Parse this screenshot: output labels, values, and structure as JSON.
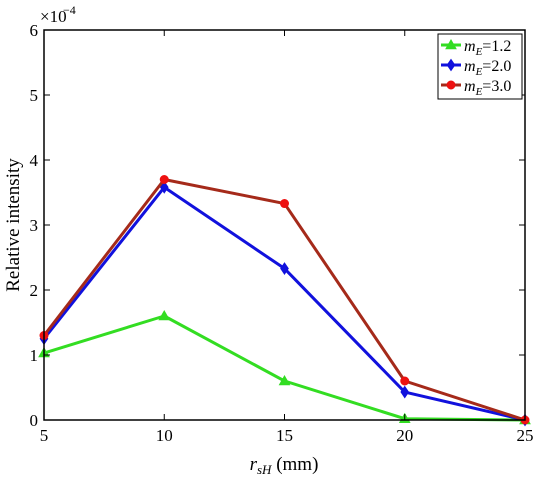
{
  "chart_data": {
    "type": "line",
    "x": [
      5,
      10,
      15,
      20,
      25
    ],
    "xlim": [
      5,
      25
    ],
    "ylim": [
      0,
      6
    ],
    "y_scale_exponent": "×10⁻⁴",
    "y_exponent_base": "×10",
    "y_exponent_power": "−4",
    "x_ticks": [
      5,
      10,
      15,
      20,
      25
    ],
    "y_ticks": [
      0,
      1,
      2,
      3,
      4,
      5,
      6
    ],
    "xlabel": {
      "main": "r",
      "sub": "sH",
      "unit": " (mm)"
    },
    "ylabel": "Relative intensity",
    "grid": false,
    "legend_position": "top-right",
    "series": [
      {
        "name": "mE=1.2",
        "legend_main": "m",
        "legend_sub": "E",
        "legend_value": "=1.2",
        "color": "#33dd22",
        "marker": "triangle",
        "values": [
          1.03,
          1.6,
          0.6,
          0.02,
          0.0
        ]
      },
      {
        "name": "mE=2.0",
        "legend_main": "m",
        "legend_sub": "E",
        "legend_value": "=2.0",
        "color": "#1111dd",
        "marker": "diamond",
        "values": [
          1.25,
          3.58,
          2.33,
          0.43,
          0.0
        ]
      },
      {
        "name": "mE=3.0",
        "legend_main": "m",
        "legend_sub": "E",
        "legend_value": "=3.0",
        "color": "#a52a1a",
        "marker": "circle",
        "values": [
          1.3,
          3.7,
          3.33,
          0.6,
          0.0
        ]
      }
    ],
    "marker_fill": {
      "mE=3.0": "#ee1111"
    }
  }
}
